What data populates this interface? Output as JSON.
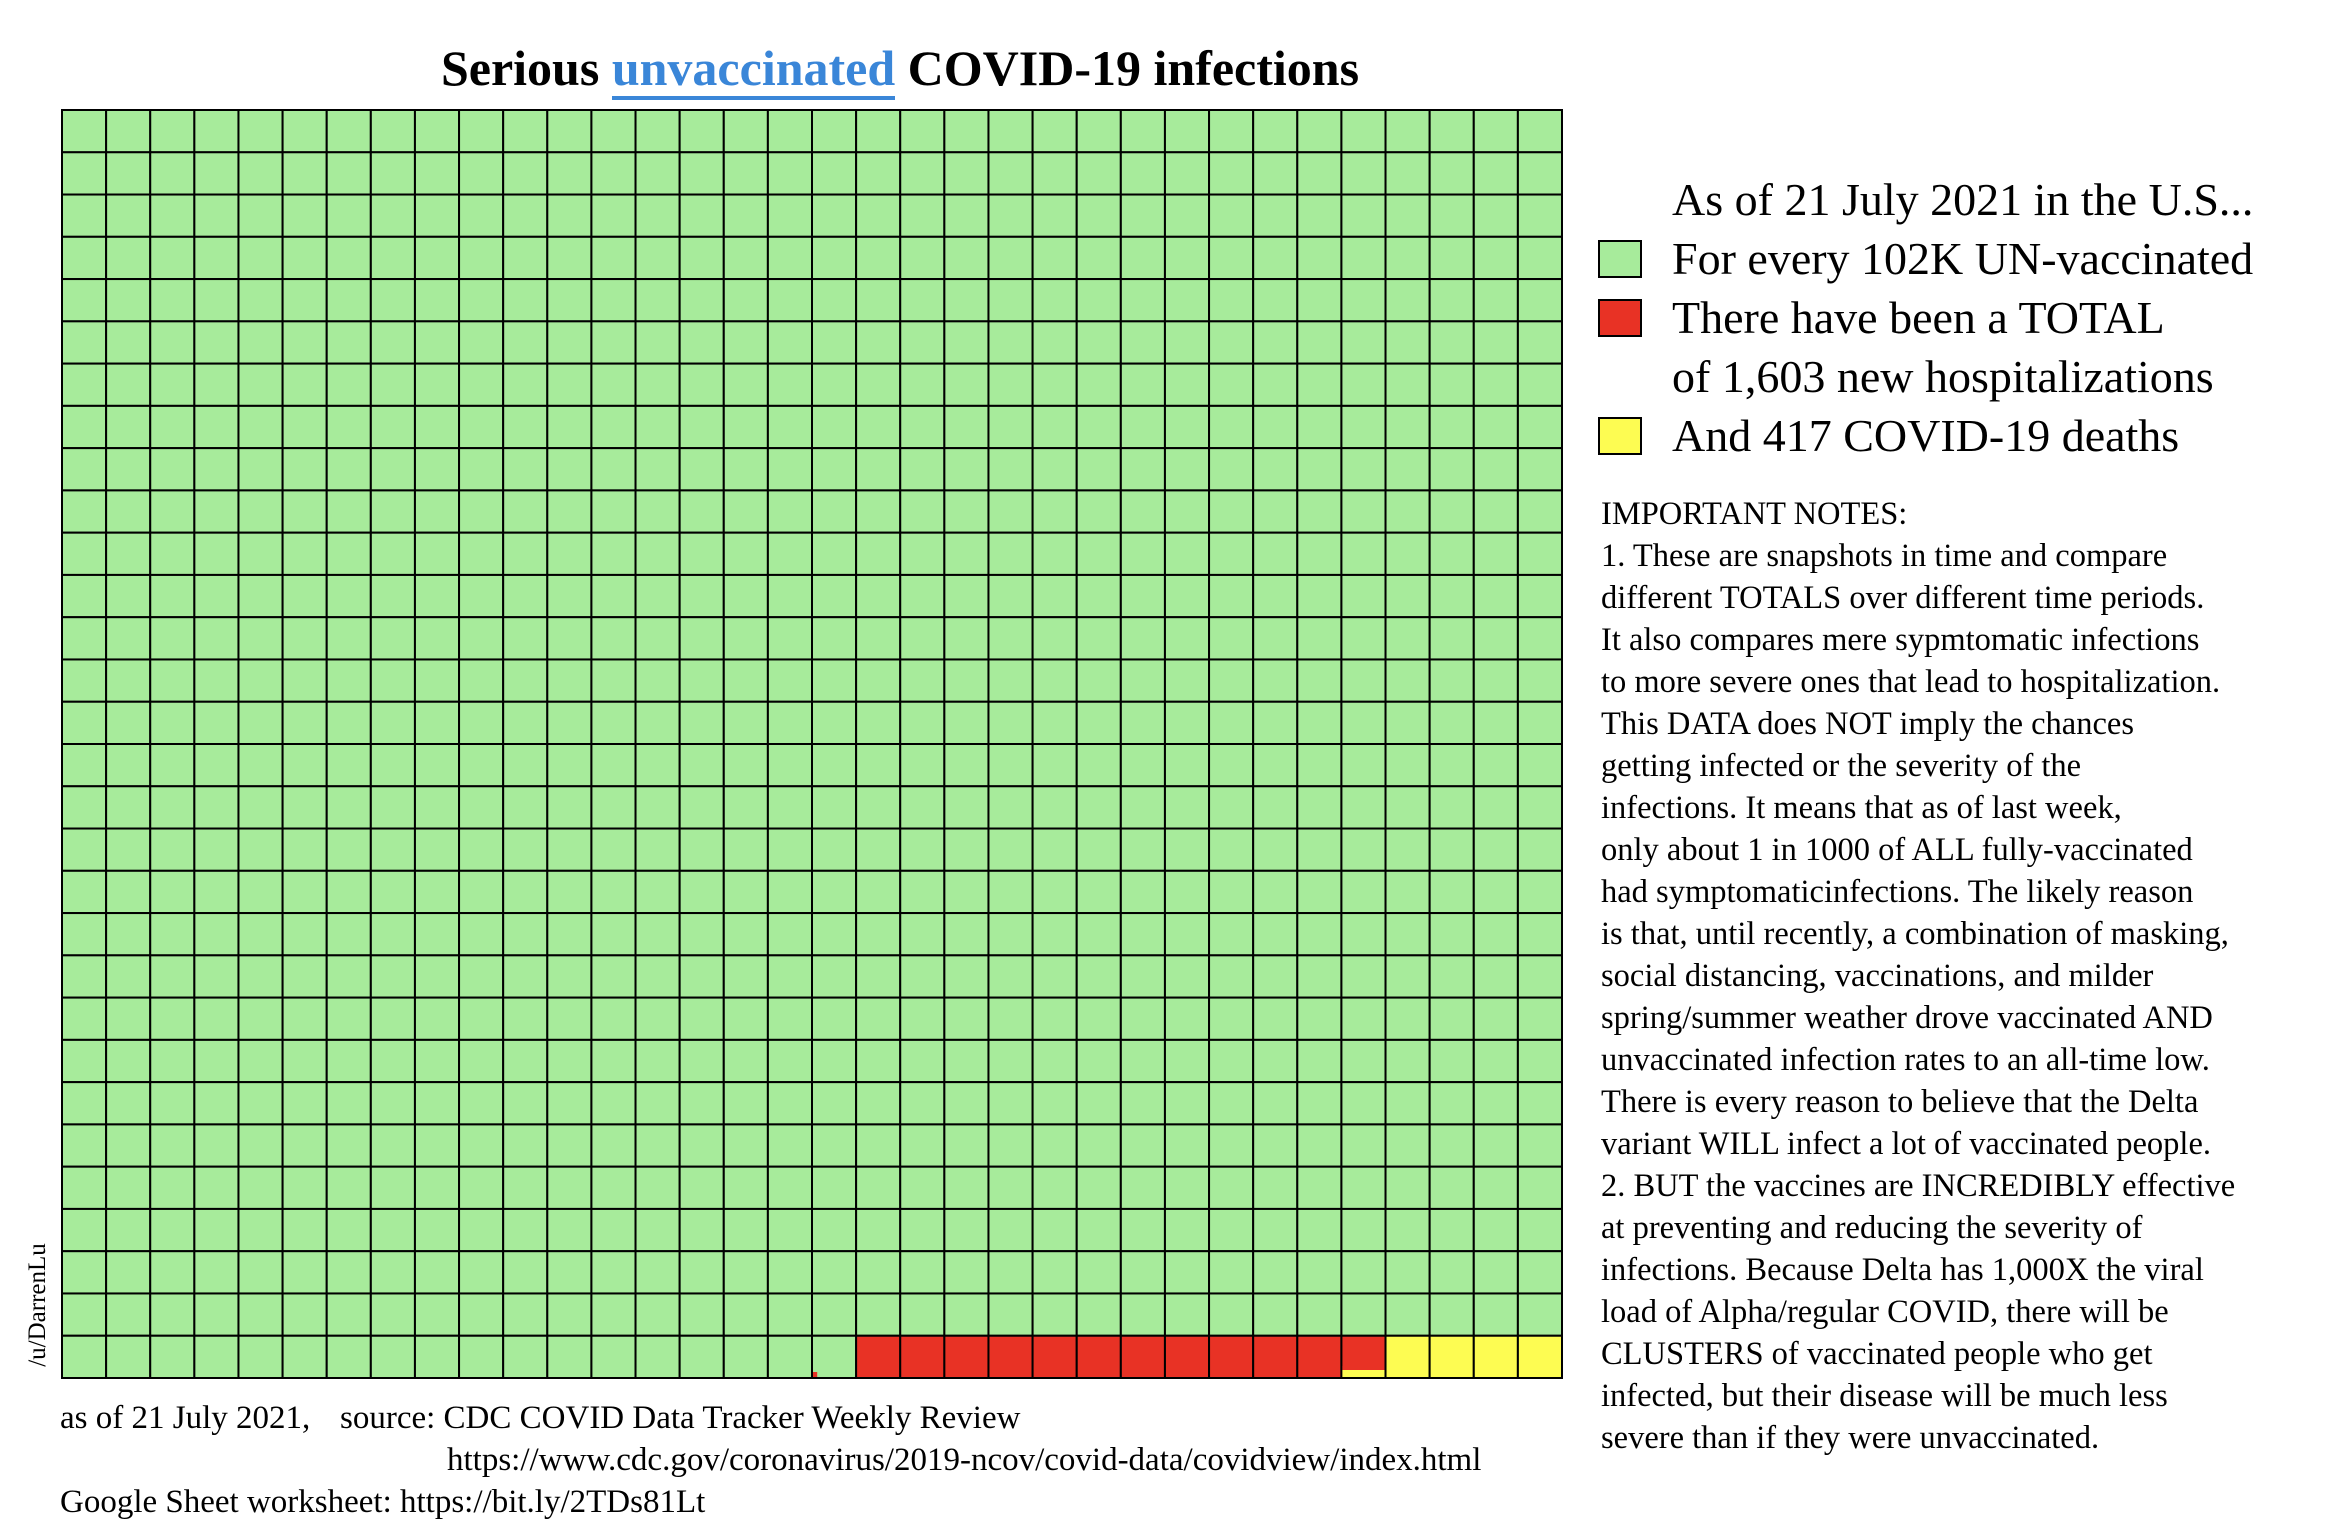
{
  "title": {
    "before": "Serious ",
    "highlight": "unvaccinated",
    "after": " COVID-19 infections",
    "highlight_color": "#3a86d8"
  },
  "credit": "/u/DarrenLu",
  "colors": {
    "green": "#a7eb9b",
    "red": "#e83225",
    "yellow": "#fdfc52",
    "border": "#000000"
  },
  "chart_data": {
    "type": "waffle",
    "rows": 30,
    "columns": 34,
    "counts": {
      "green": 1000,
      "red": 12,
      "yellow": 4
    },
    "partial_cells": [
      {
        "row": 30,
        "col": 18,
        "fill": "red",
        "fraction": 0.1
      },
      {
        "row": 30,
        "col": 30,
        "fill": "red",
        "fraction": 0.75,
        "remainder_fill": "yellow"
      }
    ],
    "categories": [
      "For every 102K UN-vaccinated",
      "There have been a TOTAL of 1,603 new hospitalizations",
      "And 417 COVID-19 deaths"
    ],
    "values": [
      102000,
      1603,
      417
    ],
    "title": "Serious unvaccinated COVID-19 infections"
  },
  "legend": {
    "items": [
      {
        "swatch": "",
        "text": "As of 21 July 2021 in the U.S..."
      },
      {
        "swatch": "#a7eb9b",
        "text": "For every 102K UN-vaccinated"
      },
      {
        "swatch": "#e83225",
        "text": "There have been a TOTAL"
      },
      {
        "swatch": "",
        "text": "of 1,603 new hospitalizations"
      },
      {
        "swatch": "#fdfc52",
        "text": "And 417 COVID-19 deaths"
      }
    ]
  },
  "notes": {
    "lines": [
      "IMPORTANT NOTES:",
      "1. These are snapshots in time and compare",
      "different TOTALS over different time periods.",
      "It also compares mere sypmtomatic infections",
      "to more severe ones that lead to hospitalization.",
      "This DATA does NOT imply the chances",
      "getting infected or the severity of the",
      "infections. It means that as of last week,",
      "only about 1 in 1000 of ALL fully-vaccinated",
      "had symptomaticinfections. The likely reason",
      "is that, until recently, a combination of masking,",
      "social distancing, vaccinations, and milder",
      "spring/summer weather drove vaccinated AND",
      "unvaccinated infection rates to an all-time low.",
      "There is every reason to believe that the Delta",
      "variant WILL infect a lot of vaccinated people.",
      "2. BUT the vaccines are INCREDIBLY effective",
      "at preventing and reducing the severity of",
      "infections. Because Delta has 1,000X the viral",
      "load of Alpha/regular COVID, there will be",
      "CLUSTERS of vaccinated people who get",
      "infected, but their disease will be much less",
      "severe than if they were unvaccinated."
    ]
  },
  "footer": {
    "as_of": "as of 21 July 2021,",
    "source": "source: CDC COVID Data Tracker Weekly Review",
    "url": "https://www.cdc.gov/coronavirus/2019-ncov/covid-data/covidview/index.html",
    "sheet": "Google Sheet worksheet: https://bit.ly/2TDs81Lt"
  }
}
